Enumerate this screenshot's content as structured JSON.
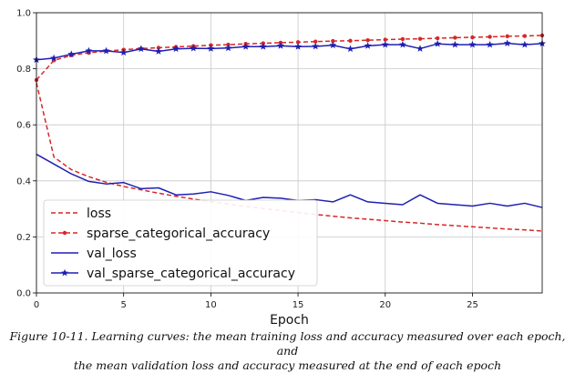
{
  "chart_data": {
    "type": "line",
    "xlabel": "Epoch",
    "ylabel": "",
    "xlim": [
      0,
      29
    ],
    "ylim": [
      0.0,
      1.0
    ],
    "xticks": [
      0,
      5,
      10,
      15,
      20,
      25
    ],
    "yticks": [
      0.0,
      0.2,
      0.4,
      0.6,
      0.8,
      1.0
    ],
    "xtick_labels": [
      "0",
      "5",
      "10",
      "15",
      "20",
      "25"
    ],
    "ytick_labels": [
      "0.0",
      "0.2",
      "0.4",
      "0.6",
      "0.8",
      "1.0"
    ],
    "grid": true,
    "legend_position": "lower-left",
    "x": [
      0,
      1,
      2,
      3,
      4,
      5,
      6,
      7,
      8,
      9,
      10,
      11,
      12,
      13,
      14,
      15,
      16,
      17,
      18,
      19,
      20,
      21,
      22,
      23,
      24,
      25,
      26,
      27,
      28,
      29
    ],
    "series": [
      {
        "name": "loss",
        "color": "#d62728",
        "style": "dashed",
        "marker": "none",
        "values": [
          0.75,
          0.485,
          0.44,
          0.415,
          0.395,
          0.38,
          0.368,
          0.356,
          0.345,
          0.335,
          0.326,
          0.317,
          0.309,
          0.301,
          0.294,
          0.287,
          0.28,
          0.274,
          0.268,
          0.263,
          0.258,
          0.253,
          0.249,
          0.244,
          0.24,
          0.236,
          0.232,
          0.228,
          0.225,
          0.221
        ]
      },
      {
        "name": "sparse_categorical_accuracy",
        "color": "#d62728",
        "style": "dashed",
        "marker": "dot",
        "values": [
          0.76,
          0.83,
          0.848,
          0.857,
          0.863,
          0.868,
          0.872,
          0.875,
          0.878,
          0.881,
          0.884,
          0.886,
          0.889,
          0.891,
          0.893,
          0.895,
          0.897,
          0.899,
          0.9,
          0.902,
          0.904,
          0.906,
          0.907,
          0.909,
          0.911,
          0.912,
          0.914,
          0.916,
          0.917,
          0.919
        ]
      },
      {
        "name": "val_loss",
        "color": "#1f1fb4",
        "style": "solid",
        "marker": "none",
        "values": [
          0.495,
          0.46,
          0.425,
          0.398,
          0.389,
          0.394,
          0.372,
          0.375,
          0.35,
          0.353,
          0.361,
          0.348,
          0.33,
          0.341,
          0.338,
          0.33,
          0.333,
          0.325,
          0.35,
          0.325,
          0.32,
          0.315,
          0.35,
          0.32,
          0.315,
          0.31,
          0.32,
          0.31,
          0.32,
          0.305
        ]
      },
      {
        "name": "val_sparse_categorical_accuracy",
        "color": "#1f1fb4",
        "style": "solid",
        "marker": "star",
        "values": [
          0.832,
          0.838,
          0.852,
          0.864,
          0.864,
          0.858,
          0.871,
          0.862,
          0.871,
          0.873,
          0.872,
          0.874,
          0.879,
          0.879,
          0.882,
          0.879,
          0.88,
          0.884,
          0.871,
          0.882,
          0.886,
          0.886,
          0.872,
          0.889,
          0.886,
          0.886,
          0.886,
          0.891,
          0.886,
          0.89
        ]
      }
    ]
  },
  "caption": {
    "line1": "Figure 10-11. Learning curves: the mean training loss and accuracy measured over each epoch, and",
    "line2": "the mean validation loss and accuracy measured at the end of each epoch"
  }
}
